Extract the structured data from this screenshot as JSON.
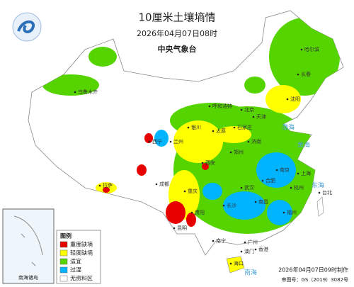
{
  "header": {
    "title": "10厘米土壤墒情",
    "time": "2026年04月07日08时",
    "agency": "中央气象台"
  },
  "legend": {
    "title": "图例",
    "items": [
      "重度缺墒",
      "轻度缺墒",
      "适宜",
      "过湿",
      "无资料区"
    ]
  },
  "inset": {
    "label": "南海诸岛"
  },
  "footer": {
    "made": "2026年04月07日09时制作",
    "approval": "审图号：GS（2019）3082号"
  },
  "seas": [
    "渤海",
    "黄海",
    "东海",
    "南海"
  ],
  "cities": [
    "哈尔滨",
    "长春",
    "沈阳",
    "呼和浩特",
    "北京",
    "天津",
    "石家庄",
    "太原",
    "济南",
    "郑州",
    "西安",
    "兰州",
    "银川",
    "西宁",
    "乌鲁木齐",
    "拉萨",
    "成都",
    "重庆",
    "贵阳",
    "昆明",
    "南宁",
    "广州",
    "海口",
    "长沙",
    "武汉",
    "合肥",
    "南京",
    "上海",
    "杭州",
    "南昌",
    "福州",
    "台北",
    "香港",
    "澳门"
  ]
}
